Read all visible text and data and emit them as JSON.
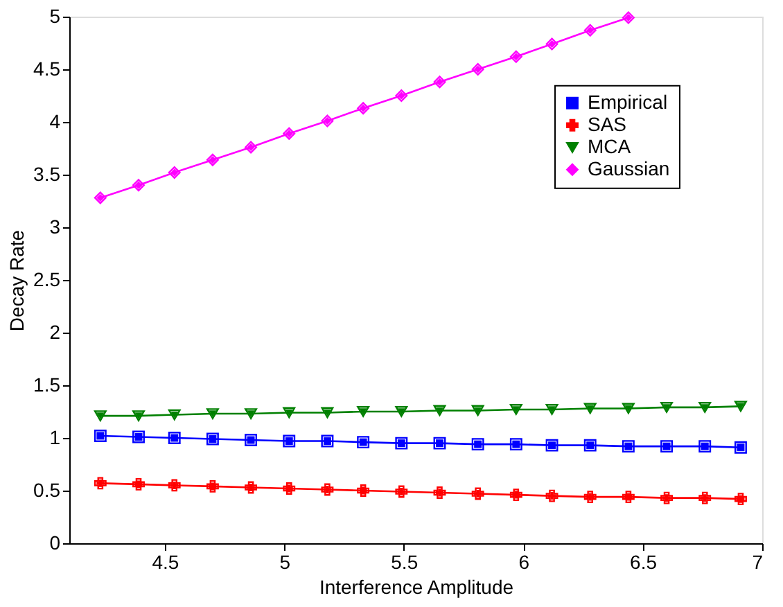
{
  "chart_data": {
    "type": "line",
    "xlabel": "Interference Amplitude",
    "ylabel": "Decay Rate",
    "x": [
      4.23,
      4.39,
      4.54,
      4.7,
      4.86,
      5.02,
      5.18,
      5.33,
      5.49,
      5.65,
      5.81,
      5.97,
      6.12,
      6.28,
      6.44,
      6.6,
      6.76,
      6.91
    ],
    "series": [
      {
        "name": "Empirical",
        "color": "#0000ff",
        "marker": "square",
        "values": [
          1.02,
          1.01,
          1.0,
          0.99,
          0.98,
          0.97,
          0.97,
          0.96,
          0.95,
          0.95,
          0.94,
          0.94,
          0.93,
          0.93,
          0.92,
          0.92,
          0.92,
          0.91
        ]
      },
      {
        "name": "SAS",
        "color": "#ff0000",
        "marker": "cross",
        "values": [
          0.57,
          0.56,
          0.55,
          0.54,
          0.53,
          0.52,
          0.51,
          0.5,
          0.49,
          0.48,
          0.47,
          0.46,
          0.45,
          0.44,
          0.44,
          0.43,
          0.43,
          0.42
        ]
      },
      {
        "name": "MCA",
        "color": "#008000",
        "marker": "triangle",
        "values": [
          1.21,
          1.21,
          1.22,
          1.23,
          1.23,
          1.24,
          1.24,
          1.25,
          1.25,
          1.26,
          1.26,
          1.27,
          1.27,
          1.28,
          1.28,
          1.29,
          1.29,
          1.3
        ]
      },
      {
        "name": "Gaussian",
        "color": "#ff00ff",
        "marker": "diamond",
        "values": [
          3.28,
          3.4,
          3.52,
          3.64,
          3.76,
          3.89,
          4.01,
          4.13,
          4.25,
          4.38,
          4.5,
          4.62,
          4.74,
          4.87,
          4.99,
          null,
          null,
          null
        ]
      }
    ],
    "xlim": [
      4.1,
      7
    ],
    "xticks": [
      4.5,
      5,
      5.5,
      6,
      6.5,
      7
    ],
    "ylim": [
      0,
      5
    ],
    "yticks": [
      0,
      0.5,
      1,
      1.5,
      2,
      2.5,
      3,
      3.5,
      4,
      4.5,
      5
    ],
    "grid": false,
    "legend": "top right",
    "line_style": "solid"
  }
}
